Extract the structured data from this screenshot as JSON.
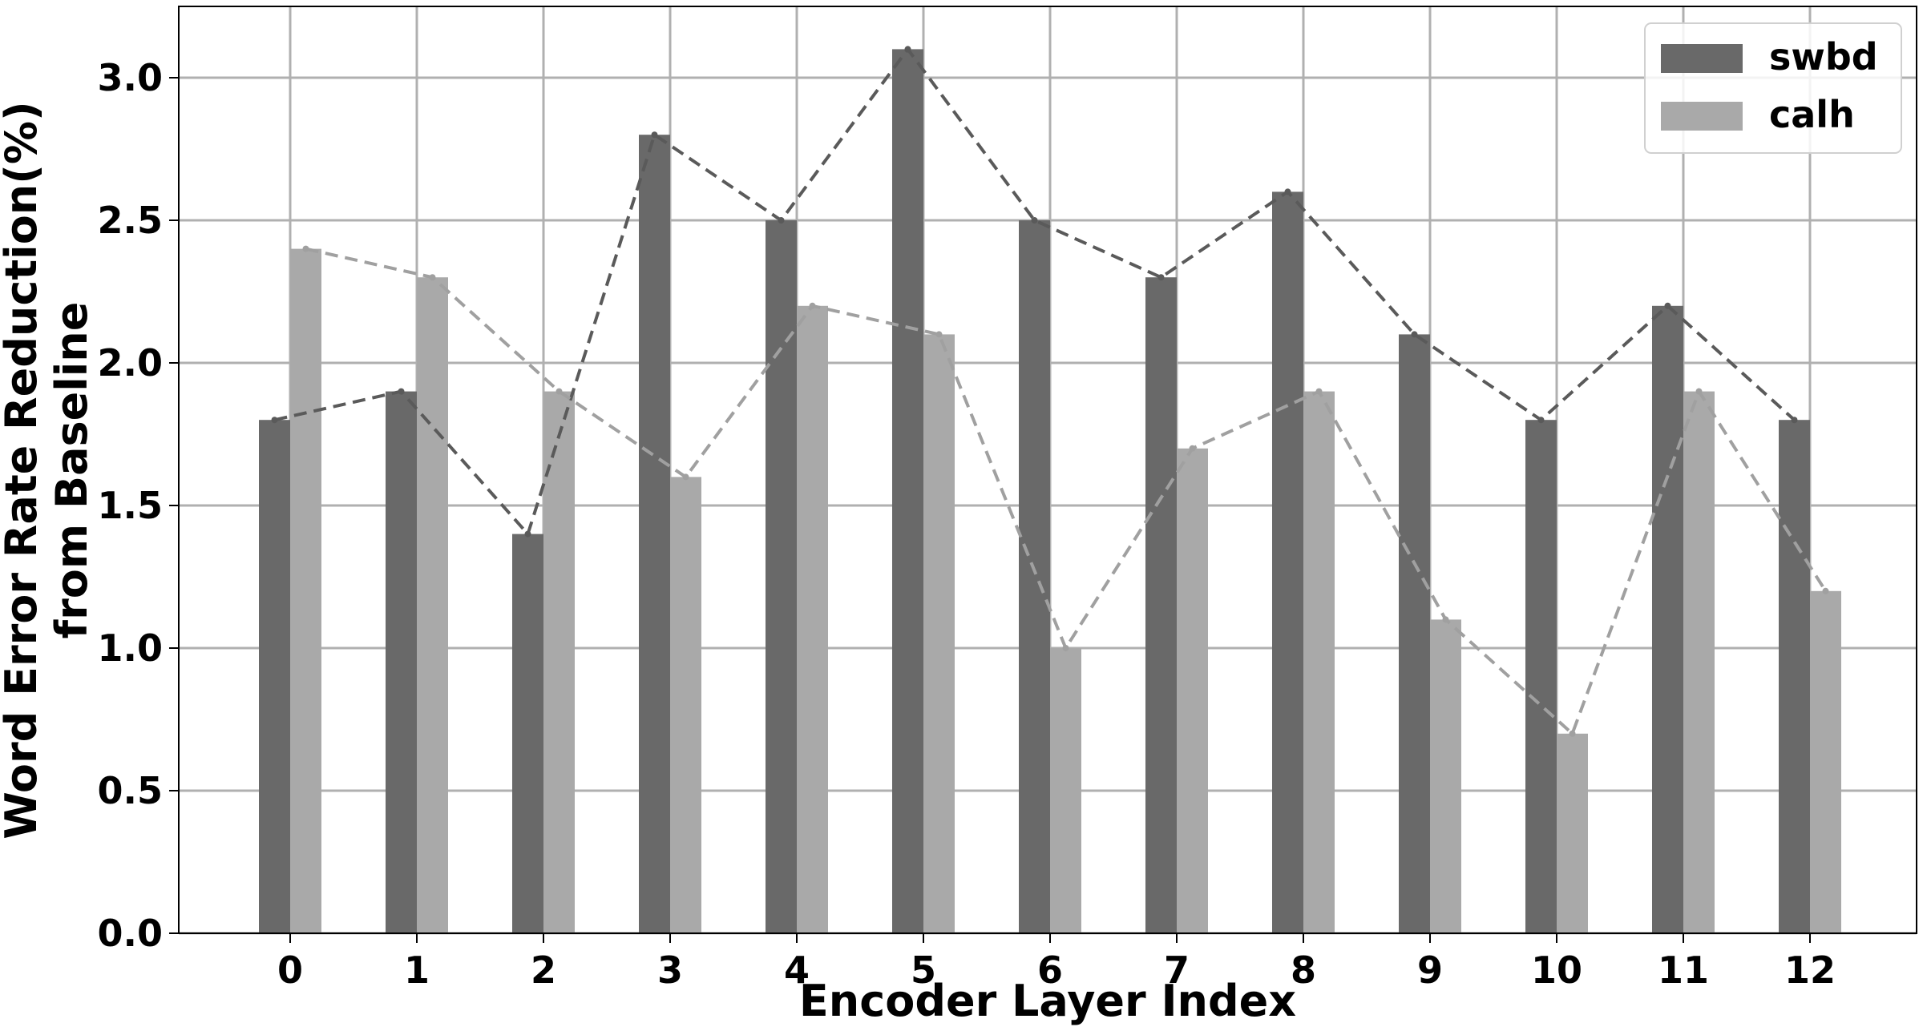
{
  "chart_data": {
    "type": "bar",
    "title": "",
    "xlabel": "Encoder Layer Index",
    "ylabel": [
      "Word Error Rate Reduction(%)",
      "from Baseline"
    ],
    "categories": [
      "0",
      "1",
      "2",
      "3",
      "4",
      "5",
      "6",
      "7",
      "8",
      "9",
      "10",
      "11",
      "12"
    ],
    "series": [
      {
        "name": "swbd",
        "values": [
          1.8,
          1.9,
          1.4,
          2.8,
          2.5,
          3.1,
          2.5,
          2.3,
          2.6,
          2.1,
          1.8,
          2.2,
          1.8
        ],
        "color": "#696969",
        "line_color": "#5a5a5a"
      },
      {
        "name": "calh",
        "values": [
          2.4,
          2.3,
          1.9,
          1.6,
          2.2,
          2.1,
          1.0,
          1.7,
          1.9,
          1.1,
          0.7,
          1.9,
          1.2
        ],
        "color": "#a9a9a9",
        "line_color": "#a0a0a0"
      }
    ],
    "ylim": [
      0,
      3.25
    ],
    "yticks": [
      "0.0",
      "0.5",
      "1.0",
      "1.5",
      "2.0",
      "2.5",
      "3.0"
    ],
    "grid": true,
    "legend_position": "top-right",
    "connecting_lines": "dashed"
  }
}
